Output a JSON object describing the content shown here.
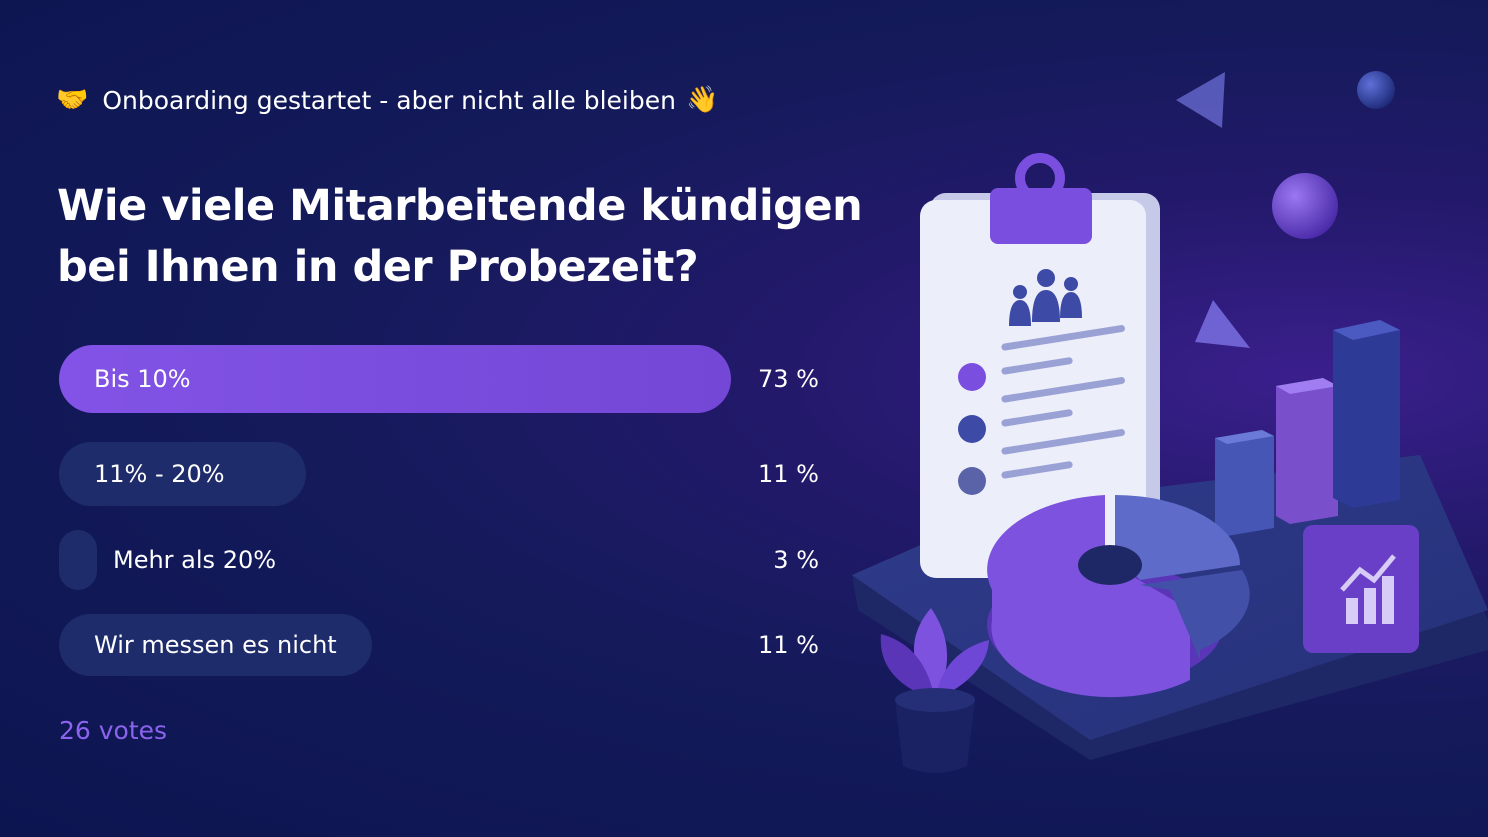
{
  "header": {
    "kicker_left_emoji": "🤝",
    "kicker_text": "Onboarding gestartet - aber nicht alle bleiben",
    "kicker_right_emoji": "👋"
  },
  "poll": {
    "question": "Wie viele Mitarbeitende kündigen bei Ihnen in der Probezeit?",
    "options": [
      {
        "label": "Bis 10%",
        "percent_text": "73 %",
        "share": 0.73
      },
      {
        "label": "11% - 20%",
        "percent_text": "11 %",
        "share": 0.11
      },
      {
        "label": "Mehr als 20%",
        "percent_text": "3 %",
        "share": 0.03
      },
      {
        "label": "Wir messen es nicht",
        "percent_text": "11 %",
        "share": 0.11
      }
    ],
    "votes_text": "26 votes"
  },
  "theme": {
    "accent": "#7c4ddf",
    "bar_muted": "#1f2c6b",
    "votes_color": "#8b63ee",
    "background_dark": "#0c1550"
  }
}
